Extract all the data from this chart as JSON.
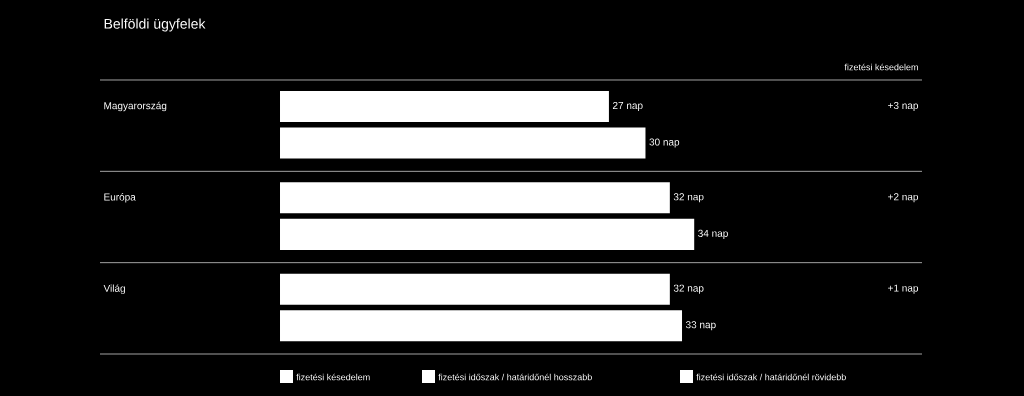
{
  "chart_data": {
    "type": "bar",
    "orientation": "horizontal",
    "title": "Belföldi ügyfelek",
    "categories": [
      "Magyarország",
      "Európa",
      "Világ"
    ],
    "legend": "bottom",
    "annotations": [
      "fizetési késedelem",
      "fizetési késedelem",
      "+3 nap",
      "+2 nap",
      "+1 nap"
    ],
    "series": [
      {
        "name": "fizetési időszak / határidőnél hosszabb",
        "color": "#ffffff",
        "values": [
          27,
          32,
          32
        ],
        "value_labels": [
          "27 nap",
          "32 nap",
          "32 nap"
        ]
      },
      {
        "name": "fizetési időszak / határidőnél rövidebb",
        "color": "#ffffff",
        "values": [
          30,
          34,
          33
        ],
        "value_labels": [
          "30 nap",
          "34 nap",
          "33 nap"
        ]
      }
    ]
  }
}
